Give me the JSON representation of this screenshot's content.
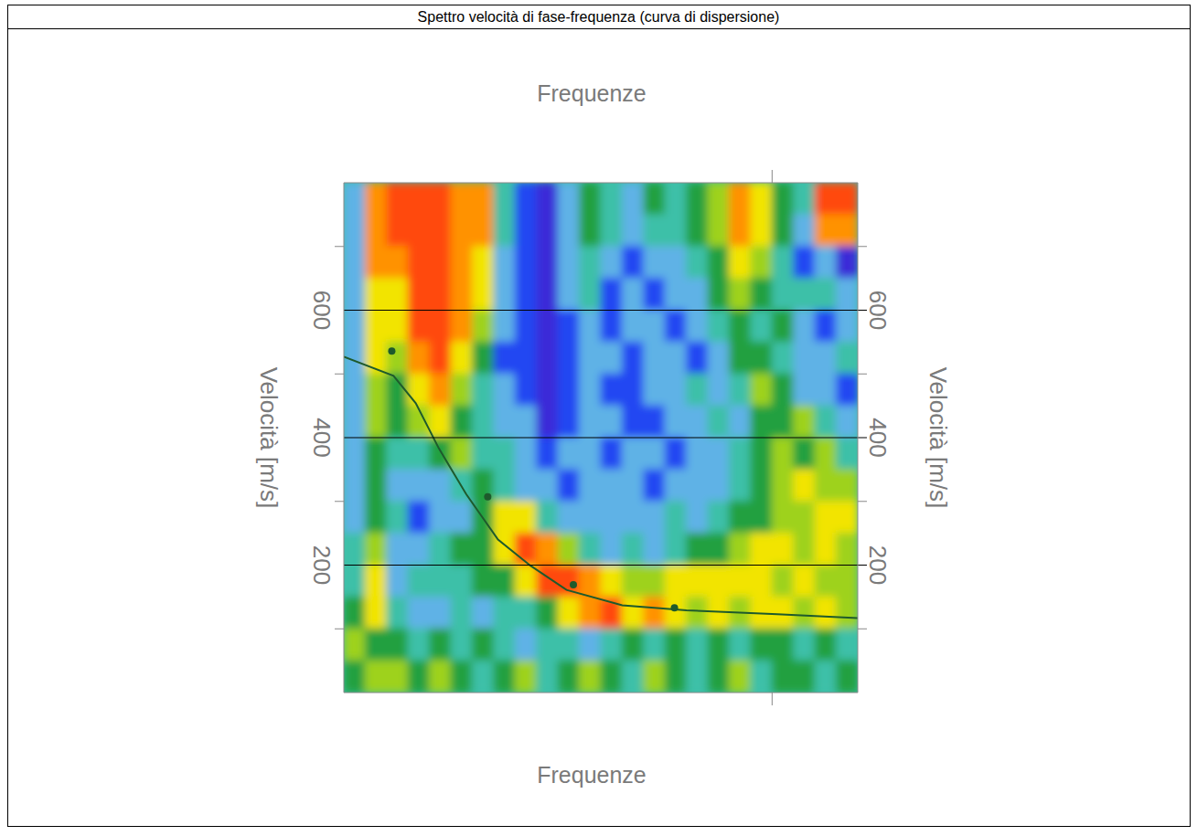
{
  "chart_data": {
    "type": "heatmap",
    "title": "Spettro velocità di fase-frequenza (curva di dispersione)",
    "x_label": "Frequenze",
    "y_label": "Velocità [m/s]",
    "xlim": [
      0,
      60
    ],
    "xticks": [
      50
    ],
    "ylim": [
      0,
      800
    ],
    "yticks": [
      200,
      400,
      600
    ],
    "minor_yticks": [
      100,
      300,
      500,
      700
    ],
    "grid": true,
    "tick_labels": "y",
    "zlim": [
      0,
      9
    ],
    "x_edges": [
      0,
      2.5,
      5,
      7.5,
      10,
      12.5,
      15,
      17.5,
      20,
      22.5,
      25,
      27.5,
      30,
      32.5,
      35,
      37.5,
      40,
      42.5,
      45,
      47.5,
      50,
      52.5,
      55,
      57.5,
      60
    ],
    "y_edges": [
      800,
      750,
      700,
      650,
      600,
      550,
      500,
      450,
      400,
      350,
      300,
      250,
      200,
      150,
      100,
      50,
      0
    ],
    "cells": [
      [
        3,
        8,
        9,
        9,
        9,
        8,
        8,
        4,
        2,
        1,
        3,
        5,
        4,
        3,
        5,
        4,
        5,
        6,
        8,
        7,
        5,
        4,
        9,
        9
      ],
      [
        3,
        8,
        9,
        9,
        9,
        8,
        8,
        4,
        2,
        1,
        3,
        5,
        4,
        3,
        4,
        4,
        5,
        6,
        8,
        7,
        5,
        3,
        8,
        8
      ],
      [
        3,
        8,
        8,
        9,
        9,
        8,
        7,
        3,
        2,
        1,
        3,
        4,
        3,
        2,
        3,
        3,
        4,
        5,
        7,
        6,
        4,
        2,
        3,
        1
      ],
      [
        3,
        7,
        7,
        9,
        9,
        8,
        7,
        3,
        2,
        1,
        3,
        4,
        2,
        3,
        2,
        3,
        3,
        5,
        6,
        5,
        4,
        4,
        4,
        3
      ],
      [
        3,
        7,
        7,
        9,
        9,
        8,
        6,
        3,
        2,
        1,
        2,
        3,
        2,
        3,
        3,
        2,
        3,
        4,
        5,
        4,
        5,
        3,
        2,
        3
      ],
      [
        3,
        7,
        6,
        8,
        9,
        7,
        5,
        2,
        2,
        1,
        2,
        3,
        3,
        2,
        3,
        3,
        2,
        3,
        5,
        5,
        4,
        3,
        3,
        4
      ],
      [
        3,
        6,
        5,
        7,
        8,
        6,
        4,
        3,
        2,
        1,
        2,
        3,
        2,
        2,
        3,
        3,
        4,
        3,
        4,
        6,
        5,
        3,
        3,
        2
      ],
      [
        3,
        6,
        5,
        6,
        7,
        5,
        4,
        3,
        3,
        1,
        2,
        3,
        3,
        2,
        2,
        3,
        3,
        4,
        3,
        5,
        5,
        6,
        4,
        3
      ],
      [
        3,
        5,
        4,
        4,
        5,
        6,
        4,
        4,
        3,
        2,
        3,
        3,
        2,
        3,
        3,
        2,
        3,
        3,
        4,
        5,
        6,
        5,
        6,
        4
      ],
      [
        3,
        5,
        3,
        3,
        3,
        4,
        5,
        4,
        3,
        3,
        2,
        3,
        3,
        3,
        2,
        3,
        3,
        3,
        4,
        5,
        6,
        7,
        6,
        6
      ],
      [
        3,
        5,
        4,
        2,
        3,
        3,
        5,
        7,
        7,
        4,
        3,
        3,
        3,
        3,
        3,
        4,
        3,
        4,
        5,
        5,
        6,
        6,
        7,
        7
      ],
      [
        4,
        6,
        3,
        3,
        4,
        5,
        5,
        7,
        9,
        8,
        6,
        4,
        3,
        4,
        3,
        4,
        5,
        5,
        6,
        7,
        7,
        6,
        7,
        6
      ],
      [
        4,
        7,
        3,
        4,
        4,
        4,
        5,
        5,
        7,
        9,
        9,
        8,
        7,
        6,
        6,
        7,
        7,
        7,
        7,
        7,
        6,
        7,
        6,
        6
      ],
      [
        5,
        7,
        4,
        3,
        3,
        4,
        3,
        4,
        4,
        5,
        7,
        8,
        9,
        7,
        8,
        7,
        6,
        7,
        6,
        7,
        7,
        6,
        7,
        6
      ],
      [
        6,
        5,
        5,
        4,
        5,
        4,
        5,
        4,
        3,
        4,
        4,
        3,
        4,
        5,
        4,
        5,
        4,
        5,
        4,
        5,
        5,
        4,
        5,
        4
      ],
      [
        5,
        6,
        6,
        5,
        6,
        5,
        4,
        5,
        6,
        4,
        5,
        6,
        5,
        4,
        6,
        5,
        4,
        5,
        6,
        4,
        5,
        5,
        4,
        5
      ]
    ],
    "curve": {
      "x": [
        0,
        5.8,
        8.4,
        11.1,
        14.3,
        18,
        21.8,
        26,
        32.5,
        40,
        50.6,
        60
      ],
      "y": [
        527,
        497,
        454,
        383,
        311,
        240,
        199,
        161,
        137,
        129,
        123,
        117
      ],
      "color": "#1e5a2c",
      "line_style": "solid"
    },
    "points": {
      "x": [
        5.6,
        16.8,
        26.8,
        38.6
      ],
      "y": [
        536,
        307,
        169,
        133
      ],
      "color": "#1e5a2c",
      "marker": "circle"
    }
  }
}
